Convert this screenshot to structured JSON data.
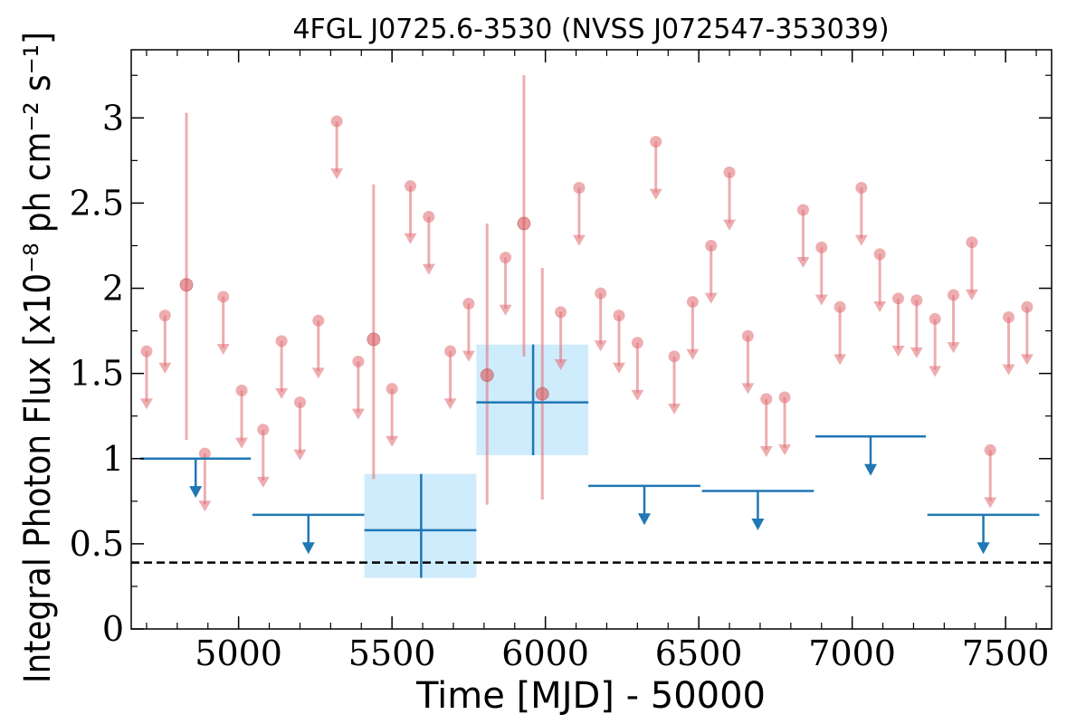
{
  "chart_data": {
    "type": "scatter",
    "title": "4FGL J0725.6-3530 (NVSS J072547-353039)",
    "xlabel": "Time [MJD] - 50000",
    "ylabel": "Integral Photon Flux [x10⁻⁸ ph cm⁻² s⁻¹]",
    "xlim": [
      4650,
      7650
    ],
    "ylim": [
      0,
      3.4
    ],
    "xticks": [
      5000,
      5500,
      6000,
      6500,
      7000,
      7500
    ],
    "xtick_labels": [
      "5000",
      "5500",
      "6000",
      "6500",
      "7000",
      "7500"
    ],
    "yticks": [
      0,
      0.5,
      1,
      1.5,
      2,
      2.5,
      3
    ],
    "ytick_labels": [
      "0",
      "0.5",
      "1",
      "1.5",
      "2",
      "2.5",
      "3"
    ],
    "grid": false,
    "colors": {
      "fine_points": "#e3777b",
      "long_bins": "#1f77b4",
      "error_box": "#bfe6fb",
      "reference_line": "#000000"
    },
    "reference_line": {
      "y": 0.39,
      "style": "dashed"
    },
    "fine_upper_limits": [
      {
        "x": 4700,
        "y": 1.63
      },
      {
        "x": 4760,
        "y": 1.84
      },
      {
        "x": 4890,
        "y": 1.03
      },
      {
        "x": 4950,
        "y": 1.95
      },
      {
        "x": 5010,
        "y": 1.4
      },
      {
        "x": 5080,
        "y": 1.17
      },
      {
        "x": 5140,
        "y": 1.69
      },
      {
        "x": 5200,
        "y": 1.33
      },
      {
        "x": 5260,
        "y": 1.81
      },
      {
        "x": 5320,
        "y": 2.98
      },
      {
        "x": 5390,
        "y": 1.57
      },
      {
        "x": 5500,
        "y": 1.41
      },
      {
        "x": 5560,
        "y": 2.6
      },
      {
        "x": 5620,
        "y": 2.42
      },
      {
        "x": 5690,
        "y": 1.63
      },
      {
        "x": 5750,
        "y": 1.91
      },
      {
        "x": 5870,
        "y": 2.18
      },
      {
        "x": 6050,
        "y": 1.86
      },
      {
        "x": 6110,
        "y": 2.59
      },
      {
        "x": 6180,
        "y": 1.97
      },
      {
        "x": 6240,
        "y": 1.84
      },
      {
        "x": 6300,
        "y": 1.68
      },
      {
        "x": 6360,
        "y": 2.86
      },
      {
        "x": 6420,
        "y": 1.6
      },
      {
        "x": 6480,
        "y": 1.92
      },
      {
        "x": 6540,
        "y": 2.25
      },
      {
        "x": 6600,
        "y": 2.68
      },
      {
        "x": 6660,
        "y": 1.72
      },
      {
        "x": 6720,
        "y": 1.35
      },
      {
        "x": 6780,
        "y": 1.36
      },
      {
        "x": 6840,
        "y": 2.46
      },
      {
        "x": 6900,
        "y": 2.24
      },
      {
        "x": 6960,
        "y": 1.89
      },
      {
        "x": 7030,
        "y": 2.59
      },
      {
        "x": 7090,
        "y": 2.2
      },
      {
        "x": 7150,
        "y": 1.94
      },
      {
        "x": 7210,
        "y": 1.93
      },
      {
        "x": 7270,
        "y": 1.82
      },
      {
        "x": 7330,
        "y": 1.96
      },
      {
        "x": 7390,
        "y": 2.27
      },
      {
        "x": 7450,
        "y": 1.05
      },
      {
        "x": 7510,
        "y": 1.83
      },
      {
        "x": 7570,
        "y": 1.89
      }
    ],
    "fine_detections": [
      {
        "x": 4830,
        "y": 2.02,
        "ylow": 1.11,
        "yhigh": 3.03
      },
      {
        "x": 5440,
        "y": 1.7,
        "ylow": 0.88,
        "yhigh": 2.61
      },
      {
        "x": 5810,
        "y": 1.49,
        "ylow": 0.73,
        "yhigh": 2.38
      },
      {
        "x": 5930,
        "y": 2.38,
        "ylow": 1.6,
        "yhigh": 3.25
      },
      {
        "x": 5990,
        "y": 1.38,
        "ylow": 0.76,
        "yhigh": 2.12
      }
    ],
    "long_upper_limits": [
      {
        "x0": 4680,
        "x1": 5040,
        "y": 1.0
      },
      {
        "x0": 5045,
        "x1": 5410,
        "y": 0.67
      },
      {
        "x0": 6140,
        "x1": 6505,
        "y": 0.84
      },
      {
        "x0": 6510,
        "x1": 6875,
        "y": 0.81
      },
      {
        "x0": 6880,
        "x1": 7240,
        "y": 1.13
      },
      {
        "x0": 7245,
        "x1": 7610,
        "y": 0.67
      }
    ],
    "long_detections": [
      {
        "x": 5595,
        "x0": 5410,
        "x1": 5775,
        "y": 0.58,
        "ylow": 0.3,
        "yhigh": 0.91
      },
      {
        "x": 5960,
        "x0": 5775,
        "x1": 6140,
        "y": 1.33,
        "ylow": 1.02,
        "yhigh": 1.67
      }
    ]
  }
}
